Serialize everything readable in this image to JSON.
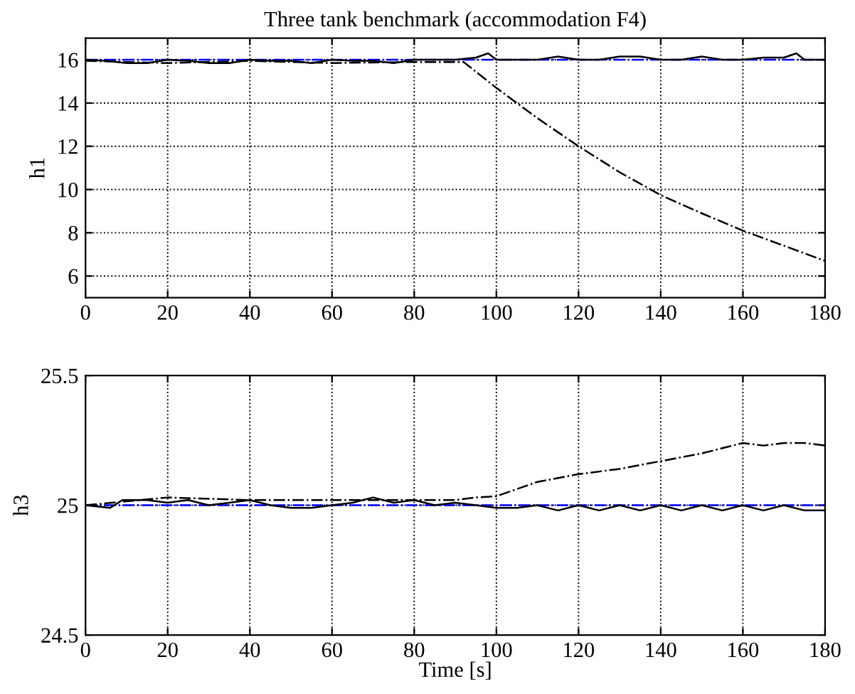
{
  "chart_data": [
    {
      "type": "line",
      "title": "Three tank benchmark (accommodation F4)",
      "ylabel": "h1",
      "xlim": [
        0,
        180
      ],
      "ylim": [
        5,
        17
      ],
      "xticks": [
        0,
        20,
        40,
        60,
        80,
        100,
        120,
        140,
        160,
        180
      ],
      "yticks": [
        6,
        8,
        10,
        12,
        14,
        16
      ],
      "grid": true,
      "series": [
        {
          "color": "#0000ff",
          "line_style": "dashdot",
          "x": [
            0,
            180
          ],
          "values": [
            16,
            16
          ]
        },
        {
          "color": "#000000",
          "line_style": "solid",
          "x": [
            0,
            5,
            10,
            15,
            20,
            25,
            30,
            35,
            40,
            45,
            50,
            55,
            60,
            65,
            70,
            75,
            80,
            85,
            90,
            95,
            98,
            100,
            105,
            110,
            115,
            120,
            125,
            130,
            135,
            140,
            145,
            150,
            155,
            160,
            165,
            170,
            173,
            175,
            180
          ],
          "values": [
            16,
            15.95,
            15.85,
            15.85,
            16,
            15.95,
            15.85,
            15.85,
            16,
            15.95,
            15.95,
            15.85,
            16,
            15.95,
            15.95,
            15.85,
            16,
            16,
            16,
            16.1,
            16.3,
            16,
            16,
            16,
            16.15,
            16,
            16,
            16.15,
            16.15,
            16,
            16,
            16.15,
            16,
            16,
            16.1,
            16.1,
            16.3,
            16,
            16
          ]
        },
        {
          "color": "#000000",
          "line_style": "dashdot",
          "x": [
            0,
            20,
            40,
            60,
            80,
            92,
            100,
            110,
            120,
            130,
            140,
            150,
            160,
            170,
            180
          ],
          "values": [
            15.95,
            15.85,
            15.95,
            15.85,
            15.9,
            15.9,
            14.7,
            13.3,
            12.0,
            10.8,
            9.74,
            8.9,
            8.1,
            7.4,
            6.7
          ]
        }
      ]
    },
    {
      "type": "line",
      "xlabel": "Time [s]",
      "ylabel": "h3",
      "xlim": [
        0,
        180
      ],
      "ylim": [
        24.5,
        25.5
      ],
      "xticks": [
        0,
        20,
        40,
        60,
        80,
        100,
        120,
        140,
        160,
        180
      ],
      "yticks": [
        24.5,
        25,
        25.5
      ],
      "grid": true,
      "series": [
        {
          "color": "#0000ff",
          "line_style": "dashdot",
          "x": [
            0,
            180
          ],
          "values": [
            25,
            25
          ]
        },
        {
          "color": "#000000",
          "line_style": "solid",
          "x": [
            0,
            6,
            9,
            15,
            20,
            25,
            30,
            35,
            40,
            45,
            50,
            55,
            60,
            65,
            70,
            75,
            80,
            85,
            90,
            95,
            100,
            105,
            110,
            115,
            120,
            125,
            130,
            135,
            140,
            145,
            150,
            155,
            160,
            165,
            170,
            175,
            180
          ],
          "values": [
            25,
            24.99,
            25.02,
            25.02,
            25.01,
            25.02,
            25.0,
            25.01,
            25.02,
            25.0,
            24.99,
            24.99,
            25.0,
            25.01,
            25.03,
            25.01,
            25.02,
            25.0,
            25.01,
            25.0,
            24.99,
            24.99,
            25.0,
            24.98,
            25.0,
            24.98,
            25.0,
            24.98,
            25.0,
            24.98,
            25.0,
            24.98,
            25.0,
            24.98,
            25.0,
            24.98,
            24.98
          ]
        },
        {
          "color": "#000000",
          "line_style": "dashdot",
          "x": [
            0,
            20,
            40,
            60,
            80,
            90,
            95,
            100,
            110,
            120,
            130,
            140,
            150,
            160,
            165,
            170,
            175,
            180
          ],
          "values": [
            25.0,
            25.03,
            25.02,
            25.02,
            25.02,
            25.02,
            25.03,
            25.035,
            25.09,
            25.12,
            25.14,
            25.17,
            25.2,
            25.24,
            25.23,
            25.24,
            25.24,
            25.23
          ]
        }
      ]
    }
  ]
}
